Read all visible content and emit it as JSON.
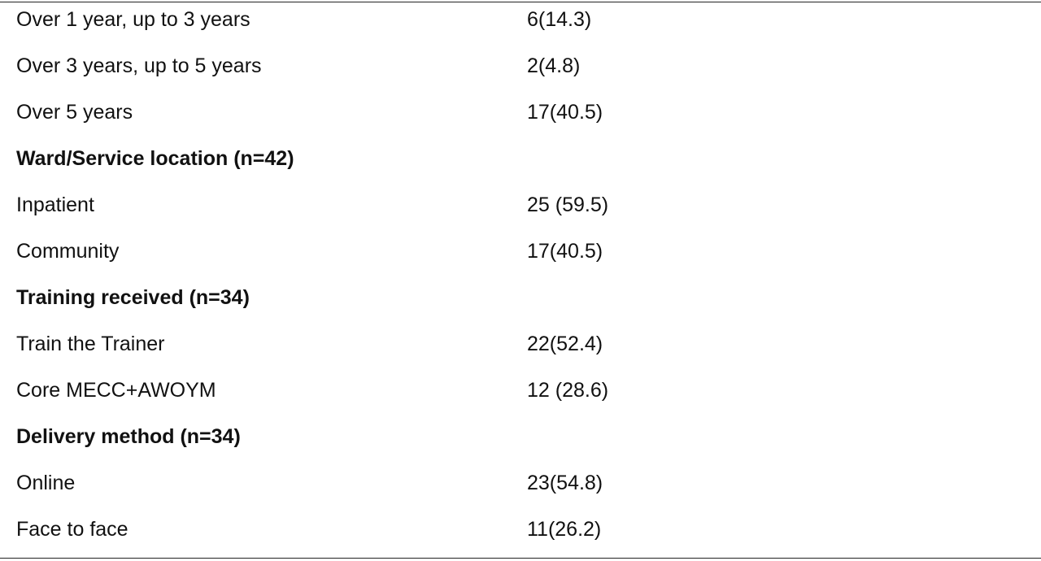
{
  "table": {
    "rows": [
      [
        "Over 1 year, up to 3 years",
        "6(14.3)"
      ],
      [
        "Over 3 years, up to 5 years",
        "2(4.8)"
      ],
      [
        "Over 5 years",
        "17(40.5)"
      ],
      [
        "Ward/Service location (n=42)"
      ],
      [
        "Inpatient",
        "25 (59.5)"
      ],
      [
        "Community",
        "17(40.5)"
      ],
      [
        "Training received (n=34)"
      ],
      [
        "Train the Trainer",
        "22(52.4)"
      ],
      [
        "Core MECC+AWOYM",
        "12 (28.6)"
      ],
      [
        "Delivery method (n=34)"
      ],
      [
        "Online",
        "23(54.8)"
      ],
      [
        "Face to face",
        "11(26.2)"
      ]
    ]
  }
}
